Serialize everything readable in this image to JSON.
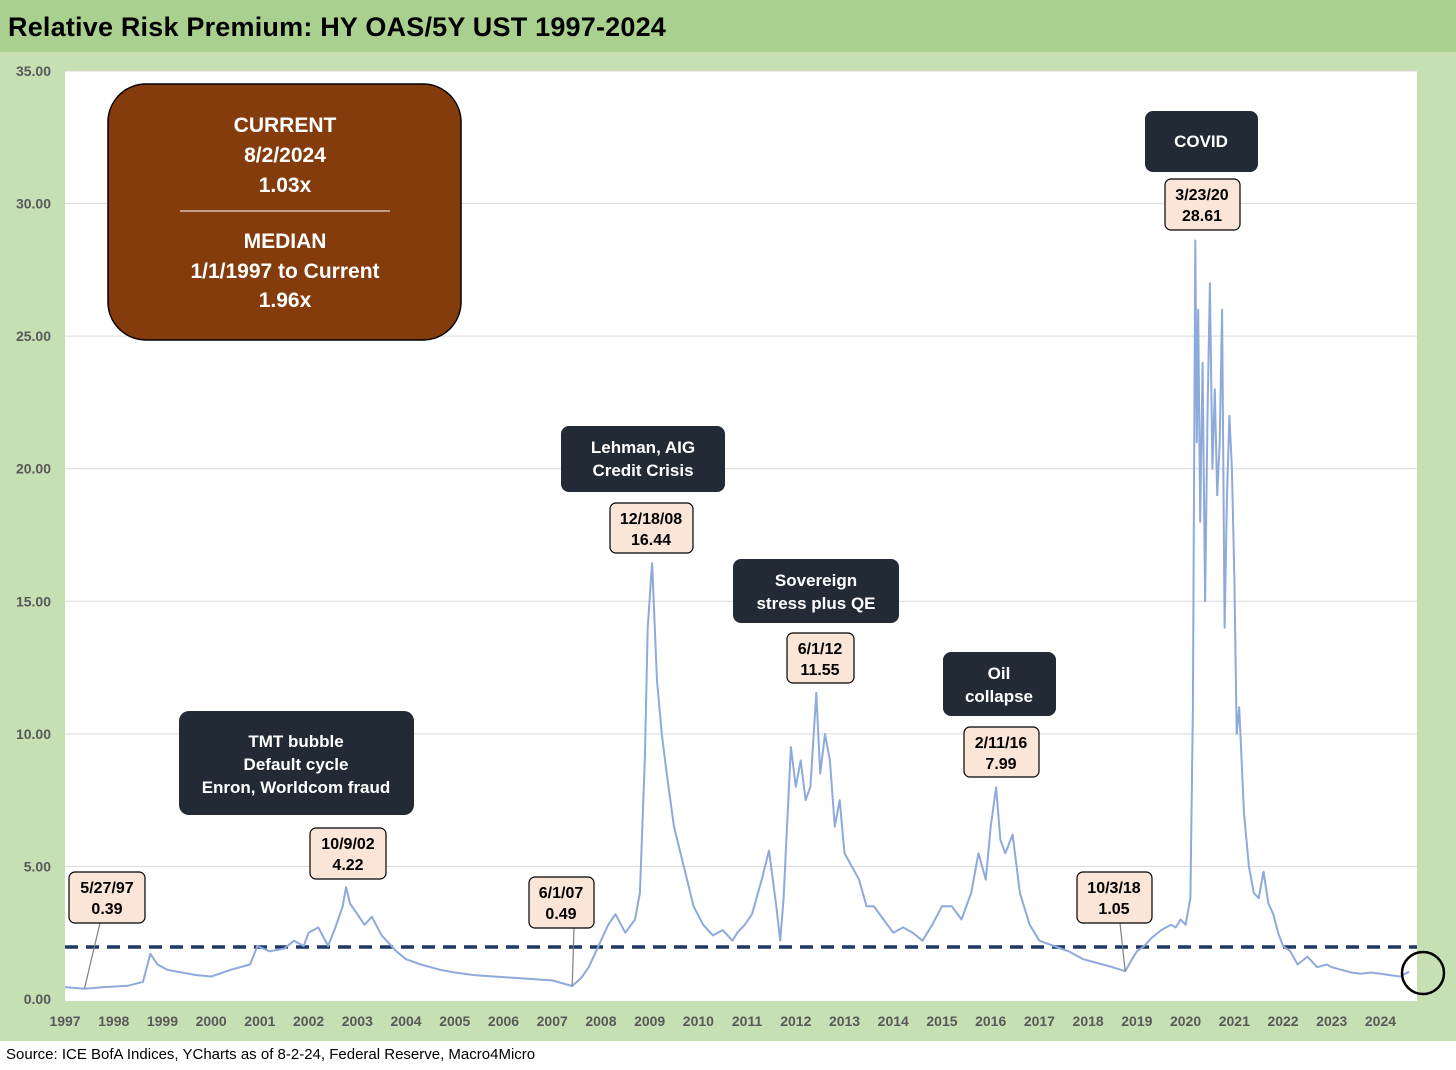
{
  "title": "Relative Risk Premium: HY OAS/5Y UST 1997-2024",
  "source": "Source: ICE BofA Indices, YCharts as of 8-2-24, Federal Reserve, Macro4Micro",
  "colors": {
    "page_bg": "#c6e0b4",
    "title_bar": "#a9d08e",
    "line": "#8eaadb",
    "median_line": "#1f3864",
    "event_box": "#222a35",
    "value_box": "#fbe5d6",
    "current_box": "#843c0c",
    "circle": "#000000"
  },
  "current_box": {
    "lines": [
      "CURRENT",
      "8/2/2024",
      "1.03x"
    ],
    "median_lines": [
      "MEDIAN",
      "1/1/1997 to Current",
      "1.96x"
    ]
  },
  "chart_data": {
    "type": "line",
    "title": "Relative Risk Premium: HY OAS/5Y UST 1997-2024",
    "xlabel": "",
    "ylabel": "",
    "xlim": [
      1997.0,
      2024.75
    ],
    "ylim": [
      0,
      35
    ],
    "y_ticks": [
      "0.00",
      "5.00",
      "10.00",
      "15.00",
      "20.00",
      "25.00",
      "30.00",
      "35.00"
    ],
    "x_ticks": [
      "1997",
      "1998",
      "1999",
      "2000",
      "2001",
      "2002",
      "2003",
      "2004",
      "2005",
      "2006",
      "2007",
      "2008",
      "2009",
      "2010",
      "2011",
      "2012",
      "2013",
      "2014",
      "2015",
      "2016",
      "2017",
      "2018",
      "2019",
      "2020",
      "2021",
      "2022",
      "2023",
      "2024"
    ],
    "grid": true,
    "median": 1.96,
    "series": [
      {
        "name": "HY OAS/5Y UST",
        "x": [
          1997.0,
          1997.4,
          1997.8,
          1998.3,
          1998.6,
          1998.75,
          1998.9,
          1999.1,
          1999.4,
          1999.7,
          2000.0,
          2000.4,
          2000.8,
          2000.95,
          2001.2,
          2001.5,
          2001.7,
          2001.9,
          2002.0,
          2002.2,
          2002.4,
          2002.55,
          2002.7,
          2002.77,
          2002.85,
          2003.0,
          2003.15,
          2003.3,
          2003.5,
          2003.8,
          2004.0,
          2004.3,
          2004.7,
          2005.0,
          2005.4,
          2005.8,
          2006.2,
          2006.6,
          2007.0,
          2007.41,
          2007.6,
          2007.75,
          2007.9,
          2008.0,
          2008.15,
          2008.3,
          2008.5,
          2008.7,
          2008.8,
          2008.9,
          2008.96,
          2009.05,
          2009.15,
          2009.25,
          2009.35,
          2009.5,
          2009.7,
          2009.9,
          2010.1,
          2010.3,
          2010.5,
          2010.7,
          2010.8,
          2010.95,
          2011.1,
          2011.3,
          2011.45,
          2011.6,
          2011.68,
          2011.75,
          2011.82,
          2011.9,
          2012.0,
          2012.1,
          2012.2,
          2012.3,
          2012.42,
          2012.5,
          2012.6,
          2012.7,
          2012.8,
          2012.9,
          2013.0,
          2013.15,
          2013.3,
          2013.45,
          2013.6,
          2013.8,
          2014.0,
          2014.2,
          2014.4,
          2014.6,
          2014.8,
          2015.0,
          2015.2,
          2015.4,
          2015.6,
          2015.75,
          2015.9,
          2016.0,
          2016.11,
          2016.2,
          2016.3,
          2016.45,
          2016.6,
          2016.8,
          2017.0,
          2017.3,
          2017.6,
          2017.9,
          2018.1,
          2018.3,
          2018.5,
          2018.76,
          2018.9,
          2019.0,
          2019.15,
          2019.3,
          2019.5,
          2019.7,
          2019.8,
          2019.9,
          2020.0,
          2020.1,
          2020.15,
          2020.2,
          2020.23,
          2020.26,
          2020.3,
          2020.35,
          2020.4,
          2020.45,
          2020.5,
          2020.55,
          2020.6,
          2020.65,
          2020.7,
          2020.75,
          2020.8,
          2020.85,
          2020.9,
          2020.95,
          2021.0,
          2021.05,
          2021.1,
          2021.2,
          2021.3,
          2021.4,
          2021.5,
          2021.6,
          2021.7,
          2021.8,
          2021.9,
          2022.0,
          2022.15,
          2022.3,
          2022.5,
          2022.7,
          2022.9,
          2023.0,
          2023.2,
          2023.4,
          2023.6,
          2023.8,
          2024.0,
          2024.2,
          2024.4,
          2024.59
        ],
        "values": [
          0.45,
          0.39,
          0.45,
          0.5,
          0.65,
          1.7,
          1.3,
          1.1,
          1.0,
          0.9,
          0.85,
          1.1,
          1.3,
          2.0,
          1.8,
          1.9,
          2.2,
          2.0,
          2.5,
          2.7,
          2.0,
          2.7,
          3.5,
          4.22,
          3.6,
          3.2,
          2.8,
          3.1,
          2.4,
          1.8,
          1.5,
          1.3,
          1.1,
          1.0,
          0.9,
          0.85,
          0.8,
          0.75,
          0.7,
          0.49,
          0.8,
          1.2,
          1.8,
          2.2,
          2.8,
          3.2,
          2.5,
          3.0,
          4.0,
          9.0,
          14.0,
          16.44,
          12.0,
          10.0,
          8.5,
          6.5,
          5.0,
          3.5,
          2.8,
          2.4,
          2.6,
          2.2,
          2.5,
          2.8,
          3.2,
          4.5,
          5.6,
          3.5,
          2.2,
          3.8,
          6.5,
          9.5,
          8.0,
          9.0,
          7.5,
          8.0,
          11.55,
          8.5,
          10.0,
          9.0,
          6.5,
          7.5,
          5.5,
          5.0,
          4.5,
          3.5,
          3.5,
          3.0,
          2.5,
          2.7,
          2.5,
          2.2,
          2.8,
          3.5,
          3.5,
          3.0,
          4.0,
          5.5,
          4.5,
          6.5,
          7.99,
          6.0,
          5.5,
          6.2,
          4.0,
          2.8,
          2.2,
          2.0,
          1.8,
          1.5,
          1.4,
          1.3,
          1.2,
          1.05,
          1.5,
          1.8,
          2.0,
          2.3,
          2.6,
          2.8,
          2.7,
          3.0,
          2.8,
          3.8,
          11.0,
          28.61,
          21.0,
          26.0,
          18.0,
          24.0,
          15.0,
          22.0,
          27.0,
          20.0,
          23.0,
          19.0,
          21.0,
          26.0,
          14.0,
          19.0,
          22.0,
          20.0,
          16.0,
          10.0,
          11.0,
          7.0,
          5.0,
          4.0,
          3.8,
          4.8,
          3.6,
          3.2,
          2.5,
          2.0,
          1.8,
          1.3,
          1.6,
          1.2,
          1.3,
          1.2,
          1.1,
          1.0,
          0.95,
          1.0,
          0.95,
          0.9,
          0.85,
          1.03
        ]
      }
    ],
    "event_annotations": [
      {
        "label_lines": [
          "TMT bubble",
          "Default cycle",
          "Enron, Worldcom fraud"
        ],
        "date": "10/9/02",
        "value": "4.22"
      },
      {
        "label_lines": [
          "Lehman, AIG",
          "Credit Crisis"
        ],
        "date": "12/18/08",
        "value": "16.44"
      },
      {
        "label_lines": [
          "Sovereign",
          "stress plus QE"
        ],
        "date": "6/1/12",
        "value": "11.55"
      },
      {
        "label_lines": [
          "Oil",
          "collapse"
        ],
        "date": "2/11/16",
        "value": "7.99"
      },
      {
        "label_lines": [
          "COVID"
        ],
        "date": "3/23/20",
        "value": "28.61"
      }
    ],
    "point_annotations": [
      {
        "date": "5/27/97",
        "value": "0.39",
        "x": 1997.4,
        "y": 0.39
      },
      {
        "date": "6/1/07",
        "value": "0.49",
        "x": 2007.41,
        "y": 0.49
      },
      {
        "date": "10/3/18",
        "value": "1.05",
        "x": 2018.76,
        "y": 1.05
      }
    ]
  }
}
